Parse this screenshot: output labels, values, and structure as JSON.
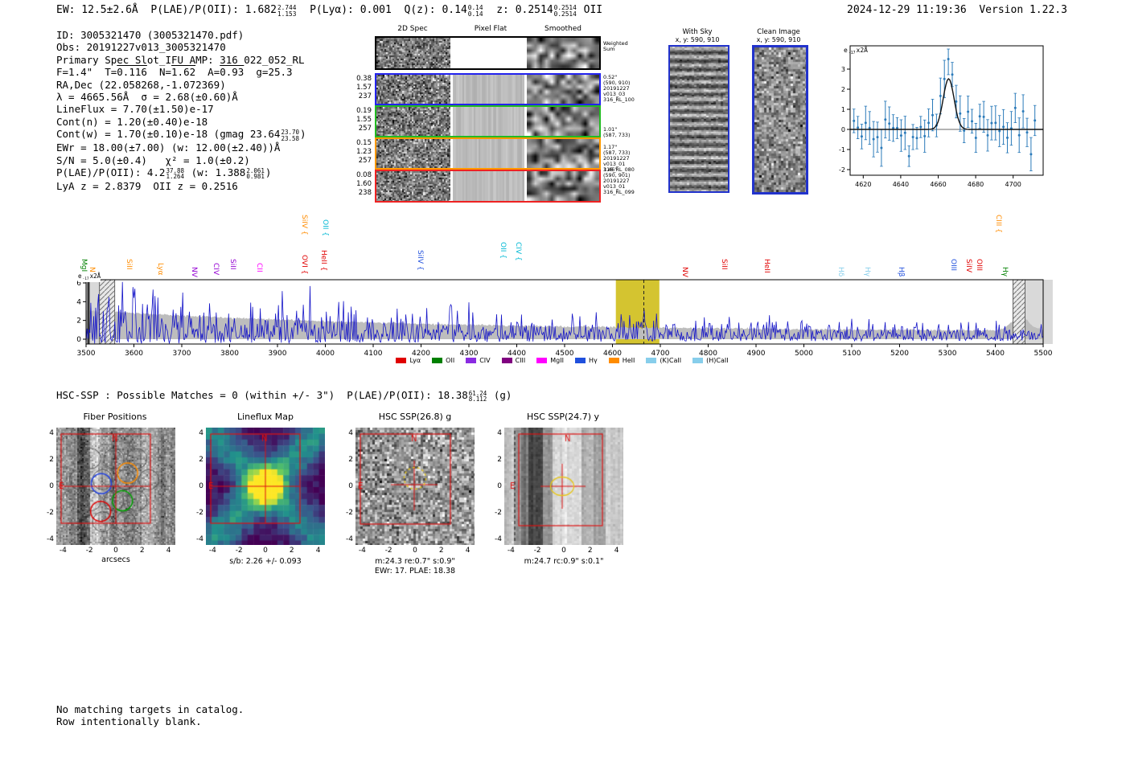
{
  "header": {
    "left_segments": [
      {
        "t": "EW: 12.5±2.6Å  "
      },
      {
        "t": "P(LAE)/P(OII): 1.682",
        "sup": "2.744",
        "sub": "1.153"
      },
      {
        "t": "  P(Lyα): 0.001  "
      },
      {
        "t": "Q(z): 0.14",
        "sup": "0.14",
        "sub": "0.14"
      },
      {
        "t": "  z: 0.2514",
        "sup": "0.2514",
        "sub": "0.2514"
      },
      {
        "t": " OII"
      }
    ],
    "right": "2024-12-29 11:19:36  Version 1.22.3"
  },
  "info_block": {
    "lines": [
      [
        {
          "t": "ID: 3005321470 (3005321470.pdf)"
        }
      ],
      [
        {
          "t": "Obs: 20191227v013_3005321470"
        }
      ],
      [
        {
          "t": "Primary Spec_Slot_IFU_AMP: 316_022_052_RL"
        }
      ],
      [
        {
          "t": "F=1.4\"  T="
        },
        {
          "t": "0.116",
          "over": true
        },
        {
          "t": "  N="
        },
        {
          "t": "1.62",
          "over": true
        },
        {
          "t": "  A="
        },
        {
          "t": "0.93",
          "over": true
        },
        {
          "t": "  g=25.3"
        }
      ],
      [
        {
          "t": "RA,Dec (22.058268,-1.072369)"
        }
      ],
      [
        {
          "t": "λ = 4665.56Å  σ = 2.68(±0.60)Å"
        }
      ],
      [
        {
          "t": "LineFlux = 7.70(±1.50)e-17"
        }
      ],
      [
        {
          "t": "Cont(n) = 1.20(±0.40)e-18"
        }
      ],
      [
        {
          "t": "Cont(w) = 1.70(±0.10)e-18 (gmag 23.64",
          "sup": "23.70",
          "sub": "23.58"
        },
        {
          "t": ")"
        }
      ],
      [
        {
          "t": "EWr = 18.00(±7.00) (w: 12.00(±2.40))Å"
        }
      ],
      [
        {
          "t": "S/N = 5.0(±0.4)   χ² = 1.0(±0.2)"
        }
      ],
      [
        {
          "t": "P(LAE)/P(OII): 4.2",
          "sup": "37.88",
          "sub": "1.264"
        },
        {
          "t": " (w: 1.388",
          "sup": "2.061",
          "sub": "0.981"
        },
        {
          "t": ")"
        }
      ],
      [
        {
          "t": "LyA z = 2.8379  OII z = 0.2516"
        }
      ]
    ]
  },
  "cutout_grid": {
    "col_titles": [
      "2D Spec",
      "Pixel Flat",
      "Smoothed"
    ],
    "weighted_sum_label": "Weighted\nSum",
    "rows": [
      {
        "border": "#000000",
        "left": [],
        "right": []
      },
      {
        "border": "#2222ee",
        "left": [
          "0.38",
          "1.57",
          "237"
        ],
        "right": [
          "0.52\"",
          "(590, 910)",
          "20191227",
          "v013_03",
          "316_RL_100"
        ]
      },
      {
        "border": "#22bb22",
        "left": [
          "0.19",
          "1.55",
          "257"
        ],
        "right": [
          "1.01\"",
          "(587, 733)"
        ]
      },
      {
        "border": "#ff9900",
        "left": [
          "0.15",
          "1.23",
          "257"
        ],
        "right": [
          "1.17\"",
          "(587, 733)",
          "20191227",
          "v013_01",
          "316_RL_080"
        ]
      },
      {
        "border": "#ee2222",
        "left": [
          "0.08",
          "1.60",
          "238"
        ],
        "right": [
          "1.46\"",
          "(590, 901)",
          "20191227",
          "v013_01",
          "316_RL_099"
        ]
      }
    ]
  },
  "sky_panels": {
    "with_sky": {
      "title": "With Sky",
      "coords": "x, y: 590, 910"
    },
    "clean": {
      "title": "Clean Image",
      "coords": "x, y: 590, 910"
    }
  },
  "chart_data": [
    {
      "id": "zoomed_emission_line",
      "type": "scatter",
      "x_range": [
        4613,
        4716
      ],
      "y_range": [
        -2.3,
        4.1
      ],
      "x_ticks": [
        4620,
        4640,
        4660,
        4680,
        4700
      ],
      "y_ticks": [
        3,
        2,
        1,
        0,
        -1,
        -2
      ],
      "flux_label_segments": [
        {
          "t": "e",
          "sup": "-17"
        },
        {
          "t": "x2Å"
        }
      ],
      "series": [
        {
          "name": "observed flux with errors",
          "style": "errorbar",
          "color": "#2a7ab9",
          "note": "noisy values near 0 with emission peak reaching ~3.4 at 4665.6 Å"
        },
        {
          "name": "gaussian fit",
          "style": "line",
          "color": "#111111",
          "center": 4665.56,
          "sigma": 2.68,
          "amplitude": 2.5,
          "baseline": 0
        }
      ]
    },
    {
      "id": "full_spectrum",
      "type": "line",
      "x_range": [
        3500,
        5520
      ],
      "y_range": [
        -0.6,
        6.5
      ],
      "x_ticks": [
        3500,
        3600,
        3700,
        3800,
        3900,
        4000,
        4100,
        4200,
        4300,
        4400,
        4500,
        4600,
        4700,
        4800,
        4900,
        5000,
        5100,
        5200,
        5300,
        5400,
        5500
      ],
      "y_ticks": [
        0,
        2,
        4,
        6
      ],
      "line_color": "#1515c8",
      "error_band_color": "#bdbdbd",
      "highlight_band": {
        "x0": 4607,
        "x1": 4698,
        "color": "#d4c430"
      },
      "dashed_line_x": 4665.56,
      "hatched_bands": [
        [
          3528,
          3560
        ],
        [
          5437,
          5462
        ]
      ],
      "emission_peak": {
        "center": 4665.56,
        "amplitude": 2.35
      },
      "flux_label_segments": [
        {
          "t": "e",
          "sup": "-17"
        },
        {
          "t": "x2Å"
        }
      ]
    }
  ],
  "line_markers": [
    {
      "name": "MgII",
      "color": "#008000",
      "wavelength": 3496,
      "brace": false,
      "raise": 0
    },
    {
      "name": "NV",
      "color": "#ff8c00",
      "wavelength": 3512,
      "brace": false,
      "raise": 0
    },
    {
      "name": "SiII",
      "color": "#ff8c00",
      "wavelength": 3590,
      "brace": false,
      "raise": 0
    },
    {
      "name": "Lyα",
      "color": "#ff8c00",
      "wavelength": 3655,
      "brace": false,
      "raise": 0
    },
    {
      "name": "NV",
      "color": "#9400d3",
      "wavelength": 3726,
      "brace": false,
      "raise": 0
    },
    {
      "name": "CIV",
      "color": "#9400d3",
      "wavelength": 3772,
      "brace": false,
      "raise": 0
    },
    {
      "name": "SiII",
      "color": "#9400d3",
      "wavelength": 3806,
      "brace": false,
      "raise": 0
    },
    {
      "name": "CII",
      "color": "#ff00ff",
      "wavelength": 3862,
      "brace": false,
      "raise": 0
    },
    {
      "name": "OVI",
      "color": "#e00000",
      "wavelength": 3956,
      "brace": true,
      "raise": 0
    },
    {
      "name": "SiIV",
      "color": "#ff8c00",
      "wavelength": 3956,
      "brace": true,
      "raise": 44
    },
    {
      "name": "HeII",
      "color": "#e00000",
      "wavelength": 3996,
      "brace": true,
      "raise": 0
    },
    {
      "name": "OII",
      "color": "#00b8d4",
      "wavelength": 4000,
      "brace": true,
      "raise": 44
    },
    {
      "name": "SiIV",
      "color": "#2050dd",
      "wavelength": 4198,
      "brace": true,
      "raise": 0
    },
    {
      "name": "OII",
      "color": "#00b8d4",
      "wavelength": 4372,
      "brace": true,
      "raise": 16
    },
    {
      "name": "CIV",
      "color": "#00b8d4",
      "wavelength": 4404,
      "brace": true,
      "raise": 16
    },
    {
      "name": "NV",
      "color": "#e00000",
      "wavelength": 4752,
      "brace": false,
      "raise": 0
    },
    {
      "name": "SiII",
      "color": "#e00000",
      "wavelength": 4833,
      "brace": false,
      "raise": 0
    },
    {
      "name": "HeII",
      "color": "#e00000",
      "wavelength": 4922,
      "brace": false,
      "raise": 0
    },
    {
      "name": "Hδ",
      "color": "#87ceeb",
      "wavelength": 5078,
      "brace": false,
      "raise": 0
    },
    {
      "name": "Hγ",
      "color": "#87ceeb",
      "wavelength": 5132,
      "brace": false,
      "raise": 0
    },
    {
      "name": "Hβ",
      "color": "#2050dd",
      "wavelength": 5203,
      "brace": false,
      "raise": 0
    },
    {
      "name": "OIII",
      "color": "#2050dd",
      "wavelength": 5312,
      "brace": false,
      "raise": 0
    },
    {
      "name": "SiIV",
      "color": "#e00000",
      "wavelength": 5345,
      "brace": false,
      "raise": 0
    },
    {
      "name": "OIII",
      "color": "#e00000",
      "wavelength": 5366,
      "brace": false,
      "raise": 0
    },
    {
      "name": "CIII",
      "color": "#ff8c00",
      "wavelength": 5406,
      "brace": true,
      "raise": 44
    },
    {
      "name": "Hγ",
      "color": "#008000",
      "wavelength": 5420,
      "brace": false,
      "raise": 0
    }
  ],
  "legend": {
    "items": [
      {
        "label": "Lyα",
        "color": "#e00000"
      },
      {
        "label": "OII",
        "color": "#008000"
      },
      {
        "label": "CIV",
        "color": "#8a2be2"
      },
      {
        "label": "CIII",
        "color": "#800080"
      },
      {
        "label": "MgII",
        "color": "#ff00ff"
      },
      {
        "label": "Hγ",
        "color": "#2050dd"
      },
      {
        "label": "HeII",
        "color": "#ff8c00"
      },
      {
        "label": "(K)CaII",
        "color": "#87ceeb"
      },
      {
        "label": "(H)CaII",
        "color": "#87ceeb"
      }
    ]
  },
  "hsc_line_segments": [
    {
      "t": "HSC-SSP : Possible Matches = 0 (within +/- 3\")  P(LAE)/P(OII): 18.38",
      "sup": "61.24",
      "sub": "8.112"
    },
    {
      "t": " (g)"
    }
  ],
  "panels": [
    {
      "title": "Fiber Positions",
      "xlabel": "arcsecs",
      "type": "fiber_positions",
      "compass": {
        "n": "N",
        "e": "E"
      }
    },
    {
      "title": "Lineflux Map",
      "caption": "s/b: 2.26 +/- 0.093",
      "type": "lineflux_map",
      "compass": {
        "n": "N",
        "e": "E"
      }
    },
    {
      "title": "HSC SSP(26.8) g",
      "caption": "m:24.3 re:0.7\" s:0.9\"",
      "caption2": "EWr: 17. PLAE: 18.38",
      "type": "hsc_g_cutout",
      "compass": {
        "n": "N",
        "e": "E"
      }
    },
    {
      "title": "HSC SSP(24.7) y",
      "caption": "m:24.7 rc:0.9\" s:0.1\"",
      "type": "hsc_y_cutout",
      "compass": {
        "n": "N",
        "e": "E"
      }
    }
  ],
  "panel_axis_ticks": [
    -4,
    -2,
    0,
    2,
    4
  ],
  "footer": {
    "lines": [
      "No matching targets in catalog.",
      "Row intentionally blank."
    ]
  }
}
